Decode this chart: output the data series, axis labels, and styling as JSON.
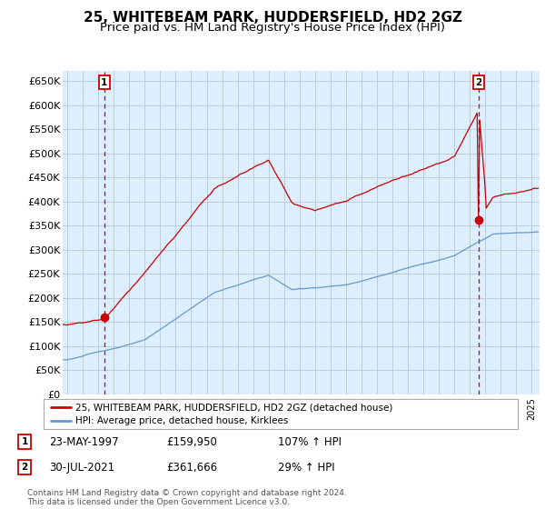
{
  "title": "25, WHITEBEAM PARK, HUDDERSFIELD, HD2 2GZ",
  "subtitle": "Price paid vs. HM Land Registry's House Price Index (HPI)",
  "ylim": [
    0,
    670000
  ],
  "yticks": [
    0,
    50000,
    100000,
    150000,
    200000,
    250000,
    300000,
    350000,
    400000,
    450000,
    500000,
    550000,
    600000,
    650000
  ],
  "xlim_start": 1994.7,
  "xlim_end": 2025.5,
  "sale1_x": 1997.39,
  "sale1_y": 159950,
  "sale2_x": 2021.58,
  "sale2_y": 361666,
  "line_color_red": "#cc0000",
  "line_color_blue": "#6699cc",
  "grid_color": "#bbccdd",
  "plot_bg": "#ddeeff",
  "background_color": "#ffffff",
  "legend_line1": "25, WHITEBEAM PARK, HUDDERSFIELD, HD2 2GZ (detached house)",
  "legend_line2": "HPI: Average price, detached house, Kirklees",
  "footer": "Contains HM Land Registry data © Crown copyright and database right 2024.\nThis data is licensed under the Open Government Licence v3.0.",
  "title_fontsize": 11,
  "subtitle_fontsize": 9.5
}
